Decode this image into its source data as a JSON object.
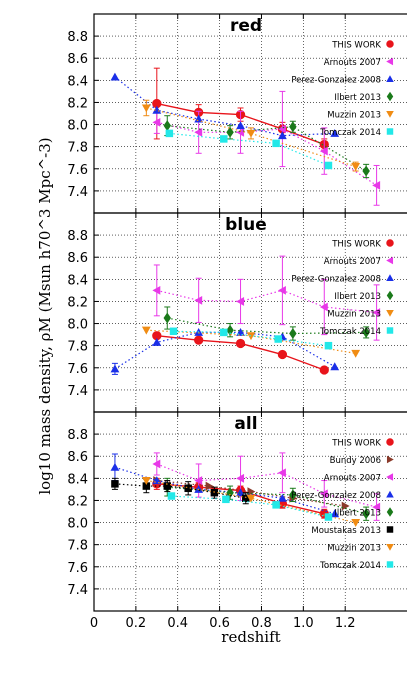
{
  "figure": {
    "ylabel": "log10 mass density, ρM (Msun h70^3 Mpc^-3)",
    "xlabel": "redshift",
    "x_ticks": [
      "0",
      "0.2",
      "0.4",
      "0.6",
      "0.8",
      "1.0",
      "1.2"
    ]
  },
  "chart_data": [
    {
      "type": "scatter",
      "title": "red",
      "xlim": [
        0,
        1.5
      ],
      "ylim": [
        7.2,
        9.0
      ],
      "y_ticks": [
        "7.4",
        "7.6",
        "7.8",
        "8.0",
        "8.2",
        "8.4",
        "8.6",
        "8.8"
      ],
      "grid": true,
      "legend_position": "right",
      "series": [
        {
          "name": "THIS WORK",
          "color": "#e8141b",
          "marker": "circle",
          "line": "solid",
          "x": [
            0.3,
            0.5,
            0.7,
            0.9,
            1.1
          ],
          "y": [
            8.19,
            8.11,
            8.09,
            7.96,
            7.82
          ],
          "err": [
            0.32,
            0.07,
            0.06,
            0.06,
            0.05
          ]
        },
        {
          "name": "Arnouts 2007",
          "color": "#e838e8",
          "marker": "tri-left",
          "line": "dotted",
          "x": [
            0.3,
            0.5,
            0.7,
            0.9,
            1.1,
            1.35
          ],
          "y": [
            8.02,
            7.93,
            7.93,
            7.96,
            7.76,
            7.45
          ],
          "err": [
            0.1,
            0.19,
            0.19,
            0.34,
            0.21,
            0.18
          ]
        },
        {
          "name": "Perez-Gonzalez 2008",
          "color": "#1a2fe8",
          "marker": "tri-up",
          "line": "dotted",
          "x": [
            0.1,
            0.3,
            0.5,
            0.7,
            0.9,
            1.15
          ],
          "y": [
            8.43,
            8.13,
            8.05,
            7.99,
            7.9,
            7.92
          ],
          "err": [
            0,
            0,
            0,
            0,
            0,
            0
          ]
        },
        {
          "name": "Ilbert 2013",
          "color": "#1a7a1a",
          "marker": "diamond",
          "line": "dotted",
          "x": [
            0.35,
            0.65,
            0.95,
            1.3
          ],
          "y": [
            7.99,
            7.93,
            7.98,
            7.58
          ],
          "err": [
            0.09,
            0.06,
            0.05,
            0.06
          ]
        },
        {
          "name": "Muzzin 2013",
          "color": "#f08c14",
          "marker": "tri-down",
          "line": "dotted",
          "x": [
            0.25,
            0.75,
            1.25
          ],
          "y": [
            8.15,
            7.92,
            7.62
          ],
          "err": [
            0.07,
            0.05,
            0.04
          ]
        },
        {
          "name": "Tomczak 2014",
          "color": "#22e8e8",
          "marker": "square",
          "line": "dotted",
          "x": [
            0.36,
            0.62,
            0.87,
            1.12
          ],
          "y": [
            7.92,
            7.87,
            7.83,
            7.63
          ],
          "err": [
            0,
            0,
            0,
            0
          ]
        }
      ]
    },
    {
      "type": "scatter",
      "title": "blue",
      "xlim": [
        0,
        1.5
      ],
      "ylim": [
        7.2,
        9.0
      ],
      "y_ticks": [
        "7.4",
        "7.6",
        "7.8",
        "8.0",
        "8.2",
        "8.4",
        "8.6",
        "8.8"
      ],
      "grid": true,
      "legend_position": "right",
      "series": [
        {
          "name": "THIS WORK",
          "color": "#e8141b",
          "marker": "circle",
          "line": "solid",
          "x": [
            0.3,
            0.5,
            0.7,
            0.9,
            1.1
          ],
          "y": [
            7.89,
            7.85,
            7.82,
            7.72,
            7.58
          ],
          "err": [
            0,
            0,
            0,
            0,
            0
          ]
        },
        {
          "name": "Arnouts 2007",
          "color": "#e838e8",
          "marker": "tri-left",
          "line": "dotted",
          "x": [
            0.3,
            0.5,
            0.7,
            0.9,
            1.1,
            1.35
          ],
          "y": [
            8.3,
            8.21,
            8.2,
            8.3,
            8.15,
            8.1
          ],
          "err": [
            0.23,
            0.2,
            0.2,
            0.31,
            0.25,
            0.25
          ]
        },
        {
          "name": "Perez-Gonzalez 2008",
          "color": "#1a2fe8",
          "marker": "tri-up",
          "line": "dotted",
          "x": [
            0.1,
            0.3,
            0.5,
            0.7,
            0.9,
            1.15
          ],
          "y": [
            7.59,
            7.83,
            7.92,
            7.92,
            7.88,
            7.61
          ],
          "err": [
            0.05,
            0,
            0,
            0,
            0,
            0
          ]
        },
        {
          "name": "Ilbert 2013",
          "color": "#1a7a1a",
          "marker": "diamond",
          "line": "dotted",
          "x": [
            0.35,
            0.65,
            0.95,
            1.3
          ],
          "y": [
            8.05,
            7.94,
            7.91,
            7.92
          ],
          "err": [
            0.1,
            0.06,
            0.06,
            0.05
          ]
        },
        {
          "name": "Muzzin 2013",
          "color": "#f08c14",
          "marker": "tri-down",
          "line": "dotted",
          "x": [
            0.25,
            0.75,
            1.25
          ],
          "y": [
            7.94,
            7.89,
            7.73
          ],
          "err": [
            0,
            0,
            0
          ]
        },
        {
          "name": "Tomczak 2014",
          "color": "#22e8e8",
          "marker": "square",
          "line": "dotted",
          "x": [
            0.38,
            0.62,
            0.88,
            1.12
          ],
          "y": [
            7.93,
            7.92,
            7.86,
            7.8
          ],
          "err": [
            0,
            0,
            0,
            0
          ]
        }
      ]
    },
    {
      "type": "scatter",
      "title": "all",
      "xlim": [
        0,
        1.5
      ],
      "ylim": [
        7.2,
        9.0
      ],
      "y_ticks": [
        "7.4",
        "7.6",
        "7.8",
        "8.0",
        "8.2",
        "8.4",
        "8.6",
        "8.8"
      ],
      "grid": true,
      "legend_position": "right",
      "series": [
        {
          "name": "THIS WORK",
          "color": "#e8141b",
          "marker": "circle",
          "line": "solid",
          "x": [
            0.3,
            0.5,
            0.7,
            0.9,
            1.1
          ],
          "y": [
            8.35,
            8.32,
            8.29,
            8.17,
            8.08
          ],
          "err": [
            0.05,
            0.04,
            0.04,
            0.04,
            0.04
          ]
        },
        {
          "name": "Bundy 2006",
          "color": "#8b3a2a",
          "marker": "tri-right",
          "line": "dotted",
          "x": [
            0.3,
            0.55,
            0.75,
            0.95,
            1.2
          ],
          "y": [
            8.38,
            8.33,
            8.28,
            8.22,
            8.15
          ],
          "err": [
            0,
            0,
            0,
            0,
            0
          ]
        },
        {
          "name": "Arnouts 2007",
          "color": "#e838e8",
          "marker": "tri-left",
          "line": "dotted",
          "x": [
            0.3,
            0.5,
            0.7,
            0.9,
            1.1,
            1.35
          ],
          "y": [
            8.53,
            8.38,
            8.4,
            8.45,
            8.26,
            8.14
          ],
          "err": [
            0.1,
            0.15,
            0.2,
            0.18,
            0.12,
            0.12
          ]
        },
        {
          "name": "Perez-Gonzalez 2008",
          "color": "#1a2fe8",
          "marker": "tri-up",
          "line": "dotted",
          "x": [
            0.1,
            0.3,
            0.5,
            0.7,
            0.9,
            1.15
          ],
          "y": [
            8.5,
            8.38,
            8.3,
            8.27,
            8.22,
            8.08
          ],
          "err": [
            0.12,
            0,
            0,
            0,
            0,
            0
          ]
        },
        {
          "name": "Ilbert 2013",
          "color": "#1a7a1a",
          "marker": "diamond",
          "line": "dotted",
          "x": [
            0.35,
            0.65,
            0.95,
            1.3
          ],
          "y": [
            8.32,
            8.27,
            8.25,
            8.08
          ],
          "err": [
            0.08,
            0.06,
            0.06,
            0.06
          ]
        },
        {
          "name": "Moustakas 2013",
          "color": "#000000",
          "marker": "square",
          "line": "dotted",
          "x": [
            0.1,
            0.25,
            0.35,
            0.45,
            0.575,
            0.725
          ],
          "y": [
            8.35,
            8.33,
            8.33,
            8.31,
            8.27,
            8.22
          ],
          "err": [
            0.05,
            0.06,
            0.05,
            0.06,
            0.05,
            0.05
          ]
        },
        {
          "name": "Muzzin 2013",
          "color": "#f08c14",
          "marker": "tri-down",
          "line": "dotted",
          "x": [
            0.25,
            0.75,
            1.25
          ],
          "y": [
            8.38,
            8.22,
            8.0
          ],
          "err": [
            0,
            0,
            0
          ]
        },
        {
          "name": "Tomczak 2014",
          "color": "#22e8e8",
          "marker": "square",
          "line": "dotted",
          "x": [
            0.37,
            0.63,
            0.87,
            1.12
          ],
          "y": [
            8.24,
            8.21,
            8.16,
            8.05
          ],
          "err": [
            0,
            0,
            0,
            0
          ]
        }
      ]
    }
  ]
}
